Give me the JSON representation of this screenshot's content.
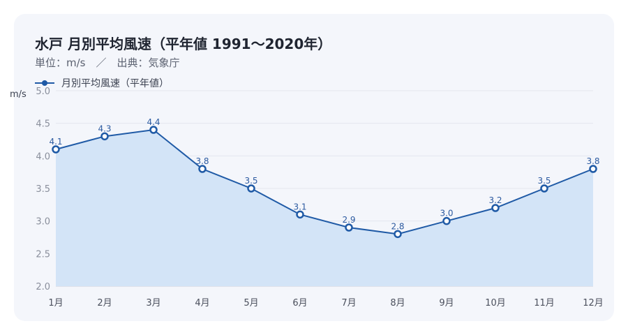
{
  "header": {
    "title": "水戸 月別平均風速（平年値 1991〜2020年）",
    "subtitle": "単位：m/s　／　出典：気象庁"
  },
  "colors": {
    "line": "#1f5aa6",
    "fill": "#d3e4f7",
    "card": "#f4f6fb"
  },
  "chart_data": {
    "type": "area",
    "categories": [
      "1月",
      "2月",
      "3月",
      "4月",
      "5月",
      "6月",
      "7月",
      "8月",
      "9月",
      "10月",
      "11月",
      "12月"
    ],
    "series": [
      {
        "name": "月別平均風速（平年値）",
        "values": [
          4.1,
          4.3,
          4.4,
          3.8,
          3.5,
          3.1,
          2.9,
          2.8,
          3.0,
          3.2,
          3.5,
          3.8
        ]
      }
    ],
    "data_labels": [
      "4.1",
      "4.3",
      "4.4",
      "3.8",
      "3.5",
      "3.1",
      "2.9",
      "2.8",
      "3.0",
      "3.2",
      "3.5",
      "3.8"
    ],
    "y_ticks": [
      "2.0",
      "2.5",
      "3.0",
      "3.5",
      "4.0",
      "4.5",
      "5.0"
    ],
    "ylabel": "m/s",
    "ylim": [
      2.0,
      5.0
    ],
    "grid": true,
    "legend": "top-left"
  }
}
